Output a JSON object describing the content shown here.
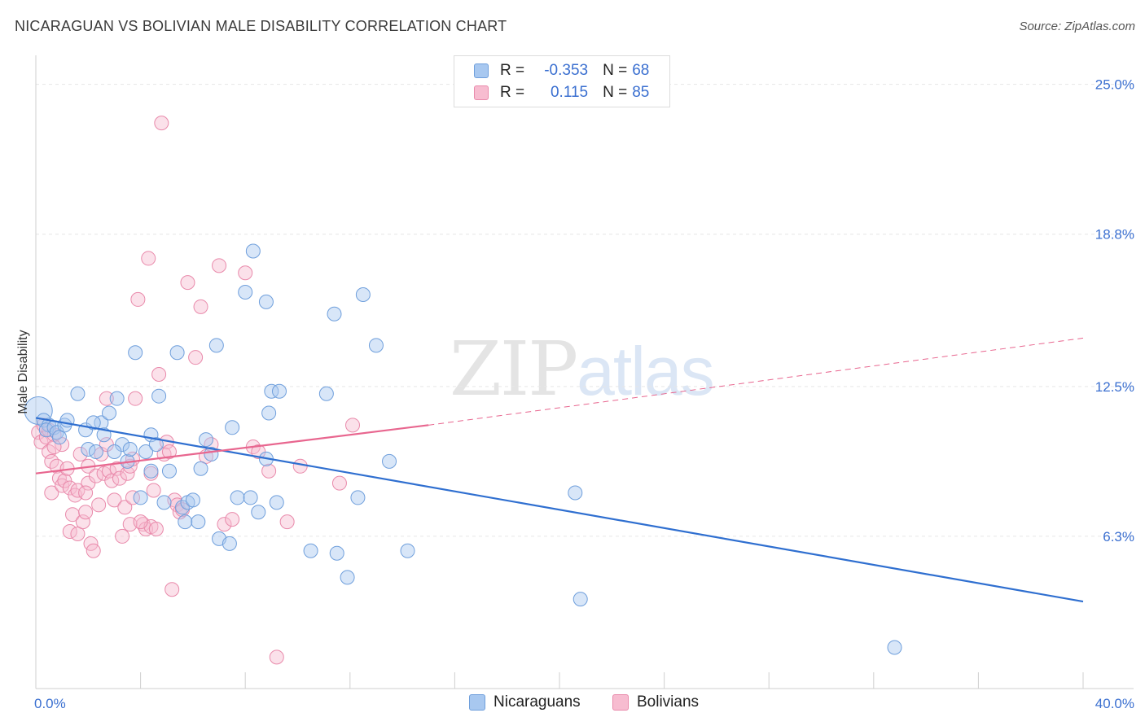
{
  "header": {
    "title": "NICARAGUAN VS BOLIVIAN MALE DISABILITY CORRELATION CHART",
    "source": "Source: ZipAtlas.com"
  },
  "watermark": {
    "zip": "ZIP",
    "atlas": "atlas"
  },
  "legend": {
    "rows": [
      {
        "r_label": "R =",
        "r_value": "-0.353",
        "n_label": "N =",
        "n_value": "68"
      },
      {
        "r_label": "R =",
        "r_value": "0.115",
        "n_label": "N =",
        "n_value": "85"
      }
    ],
    "bottom": [
      "Nicaraguans",
      "Bolivians"
    ]
  },
  "chart_data": {
    "type": "scatter",
    "title": "NICARAGUAN VS BOLIVIAN MALE DISABILITY CORRELATION CHART",
    "xlabel": "",
    "ylabel": "Male Disability",
    "xlim": [
      0,
      40
    ],
    "ylim": [
      0,
      26.2
    ],
    "x_tick_labels": [
      "0.0%",
      "40.0%"
    ],
    "y_ticks": [
      6.3,
      12.5,
      18.8,
      25.0
    ],
    "y_tick_labels": [
      "6.3%",
      "12.5%",
      "18.8%",
      "25.0%"
    ],
    "grid": true,
    "legend_position": "top-center",
    "colors": {
      "nicaraguans_fill": "#a8c8f0",
      "nicaraguans_stroke": "#6f9fdc",
      "nicaraguans_line": "#2f6fd0",
      "bolivians_fill": "#f7bcd0",
      "bolivians_stroke": "#e98aab",
      "bolivians_line": "#e8668f"
    },
    "series": [
      {
        "name": "Nicaraguans",
        "r": -0.353,
        "n": 68,
        "trend": {
          "x": [
            0,
            40
          ],
          "y": [
            11.2,
            3.6
          ]
        },
        "points": [
          [
            0.1,
            11.5
          ],
          [
            0.3,
            11.1
          ],
          [
            0.5,
            10.9
          ],
          [
            0.4,
            10.7
          ],
          [
            0.7,
            10.8
          ],
          [
            0.8,
            10.6
          ],
          [
            0.9,
            10.4
          ],
          [
            1.1,
            10.9
          ],
          [
            1.2,
            11.1
          ],
          [
            1.6,
            12.2
          ],
          [
            1.9,
            10.7
          ],
          [
            2.0,
            9.9
          ],
          [
            2.3,
            9.8
          ],
          [
            2.5,
            11.0
          ],
          [
            2.6,
            10.5
          ],
          [
            2.8,
            11.4
          ],
          [
            3.1,
            12.0
          ],
          [
            3.3,
            10.1
          ],
          [
            3.5,
            9.4
          ],
          [
            3.6,
            9.9
          ],
          [
            3.8,
            13.9
          ],
          [
            4.0,
            7.9
          ],
          [
            4.2,
            9.8
          ],
          [
            4.4,
            9.0
          ],
          [
            4.4,
            10.5
          ],
          [
            4.6,
            10.1
          ],
          [
            4.7,
            12.1
          ],
          [
            4.9,
            7.7
          ],
          [
            5.1,
            9.0
          ],
          [
            5.4,
            13.9
          ],
          [
            5.6,
            7.5
          ],
          [
            5.8,
            7.7
          ],
          [
            5.7,
            6.9
          ],
          [
            6.0,
            7.8
          ],
          [
            6.2,
            6.9
          ],
          [
            6.3,
            9.1
          ],
          [
            6.5,
            10.3
          ],
          [
            6.7,
            9.7
          ],
          [
            6.9,
            14.2
          ],
          [
            7.0,
            6.2
          ],
          [
            7.4,
            6.0
          ],
          [
            7.5,
            10.8
          ],
          [
            7.7,
            7.9
          ],
          [
            8.0,
            16.4
          ],
          [
            8.2,
            7.9
          ],
          [
            8.3,
            18.1
          ],
          [
            8.5,
            7.3
          ],
          [
            8.8,
            16.0
          ],
          [
            8.8,
            9.5
          ],
          [
            8.9,
            11.4
          ],
          [
            9.0,
            12.3
          ],
          [
            9.2,
            7.7
          ],
          [
            10.5,
            5.7
          ],
          [
            11.1,
            12.2
          ],
          [
            11.4,
            15.5
          ],
          [
            11.9,
            4.6
          ],
          [
            11.5,
            5.6
          ],
          [
            12.3,
            7.9
          ],
          [
            12.5,
            16.3
          ],
          [
            13.0,
            14.2
          ],
          [
            13.5,
            9.4
          ],
          [
            14.2,
            5.7
          ],
          [
            20.6,
            8.1
          ],
          [
            20.8,
            3.7
          ],
          [
            32.8,
            1.7
          ],
          [
            9.3,
            12.3
          ],
          [
            2.2,
            11.0
          ],
          [
            3.0,
            9.8
          ]
        ]
      },
      {
        "name": "Bolivians",
        "r": 0.115,
        "n": 85,
        "trend": {
          "x": [
            0,
            15
          ],
          "y": [
            8.9,
            10.9
          ]
        },
        "trend_dashed": {
          "x": [
            15,
            40
          ],
          "y": [
            10.9,
            14.5
          ]
        },
        "points": [
          [
            0.1,
            10.6
          ],
          [
            0.2,
            10.2
          ],
          [
            0.3,
            10.9
          ],
          [
            0.4,
            10.4
          ],
          [
            0.5,
            10.7
          ],
          [
            0.5,
            9.8
          ],
          [
            0.6,
            9.4
          ],
          [
            0.6,
            8.1
          ],
          [
            0.7,
            10.5
          ],
          [
            0.8,
            9.2
          ],
          [
            0.9,
            8.7
          ],
          [
            1.0,
            8.4
          ],
          [
            1.0,
            10.1
          ],
          [
            1.1,
            8.6
          ],
          [
            1.2,
            9.1
          ],
          [
            1.3,
            8.3
          ],
          [
            1.3,
            6.5
          ],
          [
            1.4,
            7.2
          ],
          [
            1.5,
            8.0
          ],
          [
            1.6,
            8.2
          ],
          [
            1.6,
            6.4
          ],
          [
            1.7,
            9.7
          ],
          [
            1.8,
            6.9
          ],
          [
            1.9,
            7.3
          ],
          [
            2.0,
            9.2
          ],
          [
            2.0,
            8.5
          ],
          [
            2.1,
            6.0
          ],
          [
            2.2,
            5.7
          ],
          [
            2.3,
            8.8
          ],
          [
            2.4,
            7.6
          ],
          [
            2.5,
            9.7
          ],
          [
            2.6,
            8.9
          ],
          [
            2.7,
            10.1
          ],
          [
            2.8,
            9.0
          ],
          [
            2.9,
            8.6
          ],
          [
            3.0,
            7.8
          ],
          [
            3.1,
            9.1
          ],
          [
            3.2,
            8.7
          ],
          [
            3.3,
            6.3
          ],
          [
            3.4,
            7.5
          ],
          [
            3.5,
            8.9
          ],
          [
            3.6,
            9.2
          ],
          [
            3.6,
            6.8
          ],
          [
            3.7,
            7.9
          ],
          [
            3.8,
            12.0
          ],
          [
            3.9,
            16.1
          ],
          [
            4.1,
            6.8
          ],
          [
            4.2,
            6.6
          ],
          [
            4.3,
            17.8
          ],
          [
            4.4,
            6.7
          ],
          [
            4.4,
            8.9
          ],
          [
            4.5,
            8.2
          ],
          [
            4.6,
            6.6
          ],
          [
            4.7,
            13.0
          ],
          [
            4.8,
            23.4
          ],
          [
            4.9,
            9.7
          ],
          [
            5.0,
            10.2
          ],
          [
            5.1,
            9.8
          ],
          [
            5.2,
            4.1
          ],
          [
            5.3,
            7.8
          ],
          [
            5.4,
            7.6
          ],
          [
            5.5,
            7.3
          ],
          [
            5.6,
            7.4
          ],
          [
            5.8,
            16.8
          ],
          [
            6.1,
            13.7
          ],
          [
            6.3,
            15.8
          ],
          [
            6.5,
            9.6
          ],
          [
            7.0,
            17.5
          ],
          [
            7.2,
            6.8
          ],
          [
            7.5,
            7.0
          ],
          [
            8.0,
            17.2
          ],
          [
            8.3,
            10.0
          ],
          [
            8.5,
            9.8
          ],
          [
            8.9,
            9.0
          ],
          [
            9.2,
            1.3
          ],
          [
            9.6,
            6.9
          ],
          [
            10.1,
            9.2
          ],
          [
            11.6,
            8.5
          ],
          [
            12.1,
            10.9
          ],
          [
            3.7,
            9.5
          ],
          [
            2.7,
            12.0
          ],
          [
            1.9,
            8.1
          ],
          [
            0.7,
            10.0
          ],
          [
            4.0,
            6.9
          ],
          [
            6.7,
            10.1
          ]
        ]
      }
    ]
  }
}
